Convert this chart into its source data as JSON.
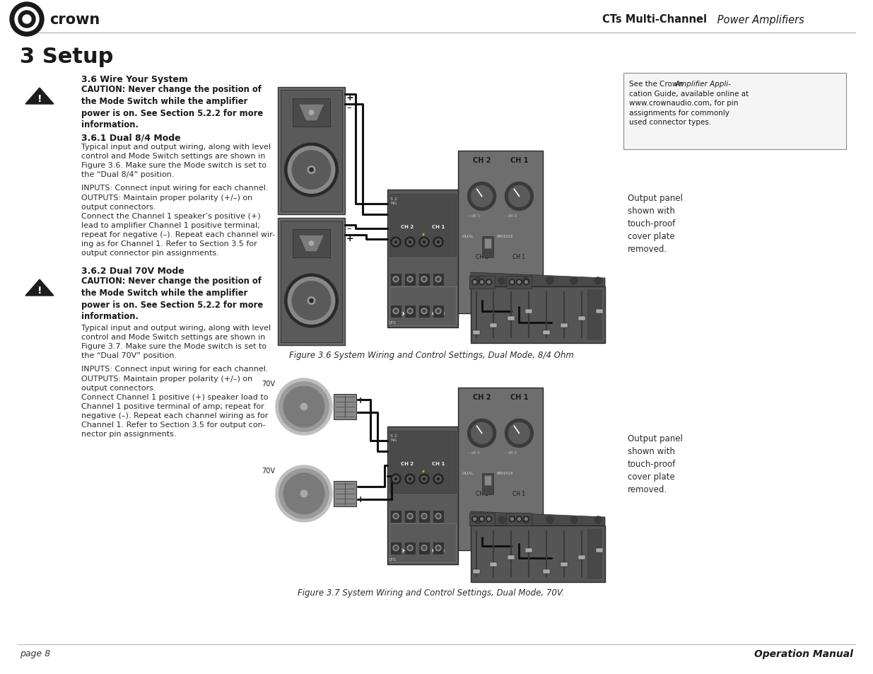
{
  "bg_color": "#ffffff",
  "header_bold": "CTs Multi-Channel",
  "header_italic": " Power Amplifiers",
  "footer_left": "page 8",
  "footer_right": "Operation Manual",
  "page_title": "3 Setup",
  "section_36": "3.6 Wire Your System",
  "caution1": "CAUTION: Never change the position of\nthe Mode Switch while the amplifier\npower is on. See Section 5.2.2 for more\ninformation.",
  "section_361": "3.6.1 Dual 8/4 Mode",
  "para_361a": "Typical input and output wiring, along with level\ncontrol and Mode Switch settings are shown in\nFigure 3.6. Make sure the Mode switch is set to\nthe “Dual 8/4” position.",
  "para_361b": "INPUTS: Connect input wiring for each channel.",
  "para_361c": "OUTPUTS: Maintain proper polarity (+/–) on\noutput connectors.",
  "para_361d": "Connect the Channel 1 speaker’s positive (+)\nlead to amplifier Channel 1 positive terminal;\nrepeat for negative (–). Repeat each channel wir-\ning as for Channel 1. Refer to Section 3.5 for\noutput connector pin assignments.",
  "section_362": "3.6.2 Dual 70V Mode",
  "caution2": "CAUTION: Never change the position of\nthe Mode Switch while the amplifier\npower is on. See Section 5.2.2 for more\ninformation.",
  "para_362a": "Typical input and output wiring, along with level\ncontrol and Mode Switch settings are shown in\nFigure 3.7. Make sure the Mode switch is set to\nthe “Dual 70V” position.",
  "para_362b": "INPUTS: Connect input wiring for each channel.",
  "para_362c": "OUTPUTS: Maintain proper polarity (+/–) on\noutput connectors.",
  "para_362d": "Connect Channel 1 positive (+) speaker load to\nChannel 1 positive terminal of amp; repeat for\nnegative (–). Repeat each channel wiring as for\nChannel 1. Refer to Section 3.5 for output con-\nnector pin assignments.",
  "fig1_cap": "Figure 3.6 System Wiring and Control Settings, Dual Mode, 8/4 Ohm",
  "fig2_cap": "Figure 3.7 System Wiring and Control Settings, Dual Mode, 70V.",
  "note_line1": "See the Crown ",
  "note_bold_part": "Amplifier Appli-",
  "note_rest": "cation Guide, available online at\nwww.crownaudio.com, for pin\nassignments for commonly\nused connector types.",
  "output_panel": "Output panel\nshown with\ntouch-proof\ncover plate\nremoved."
}
